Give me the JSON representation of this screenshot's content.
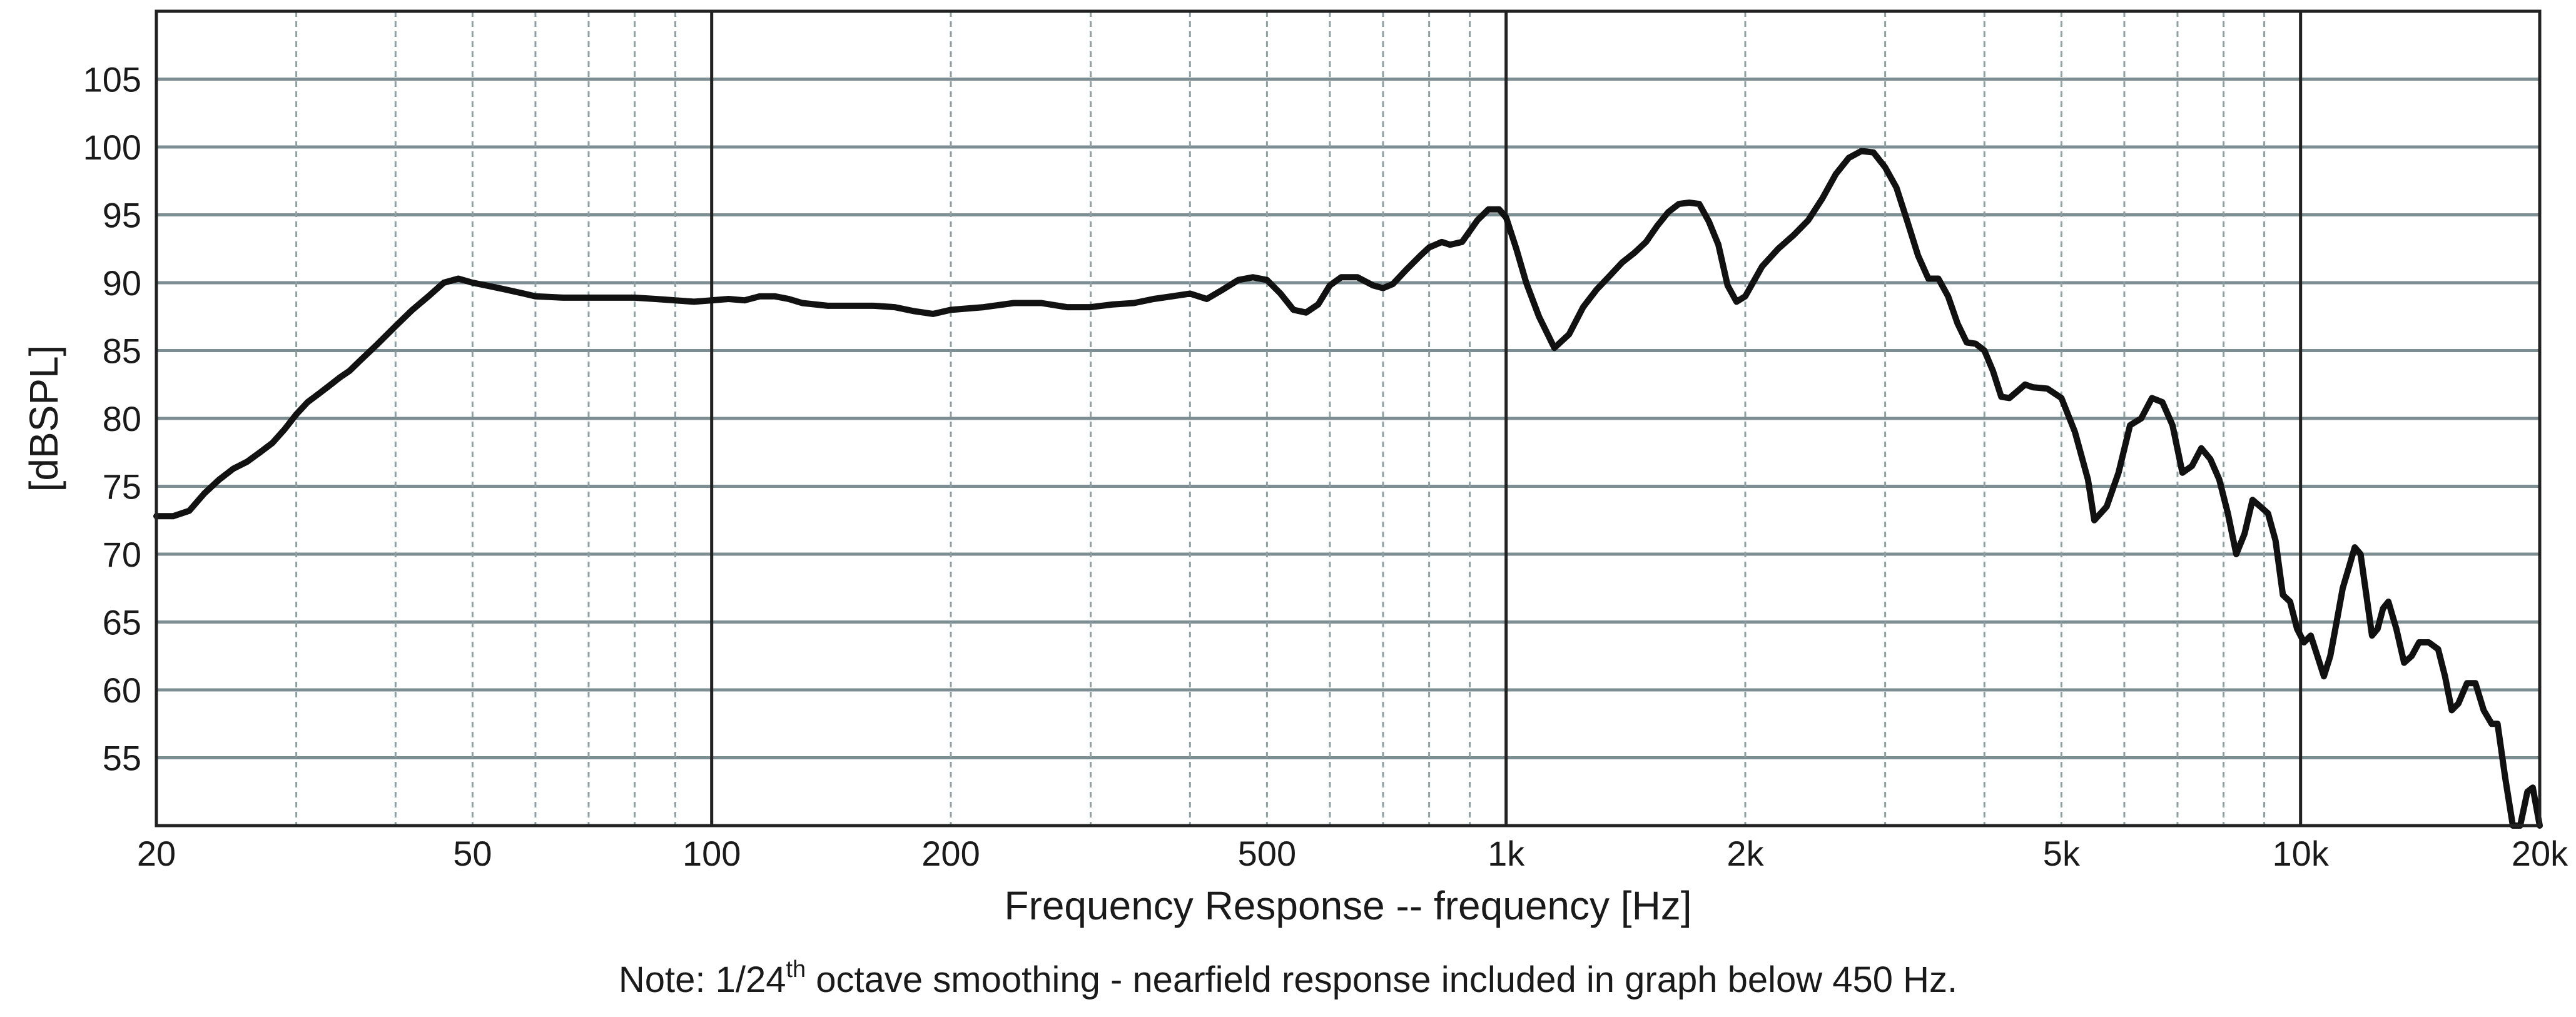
{
  "chart_data": {
    "type": "line",
    "xlabel": "Frequency Response -- frequency [Hz]",
    "ylabel": "[dBSPL]",
    "x_scale": "log",
    "xlim": [
      20,
      20000
    ],
    "ylim": [
      50,
      110
    ],
    "grid": true,
    "x_ticks": [
      {
        "value": 20,
        "label": "20"
      },
      {
        "value": 50,
        "label": "50"
      },
      {
        "value": 100,
        "label": "100"
      },
      {
        "value": 200,
        "label": "200"
      },
      {
        "value": 500,
        "label": "500"
      },
      {
        "value": 1000,
        "label": "1k"
      },
      {
        "value": 2000,
        "label": "2k"
      },
      {
        "value": 5000,
        "label": "5k"
      },
      {
        "value": 10000,
        "label": "10k"
      },
      {
        "value": 20000,
        "label": "20k"
      }
    ],
    "y_ticks": [
      55,
      60,
      65,
      70,
      75,
      80,
      85,
      90,
      95,
      100,
      105
    ],
    "series": [
      {
        "color": "#111111",
        "points": [
          [
            20,
            72.8
          ],
          [
            21,
            72.8
          ],
          [
            22,
            73.2
          ],
          [
            23,
            74.5
          ],
          [
            24,
            75.5
          ],
          [
            25,
            76.3
          ],
          [
            26,
            76.8
          ],
          [
            27,
            77.5
          ],
          [
            28,
            78.2
          ],
          [
            29,
            79.2
          ],
          [
            30,
            80.3
          ],
          [
            31,
            81.2
          ],
          [
            32,
            81.8
          ],
          [
            33,
            82.4
          ],
          [
            34,
            83.0
          ],
          [
            35,
            83.5
          ],
          [
            36,
            84.2
          ],
          [
            38,
            85.5
          ],
          [
            40,
            86.8
          ],
          [
            42,
            88.0
          ],
          [
            44,
            89.0
          ],
          [
            46,
            90.0
          ],
          [
            48,
            90.3
          ],
          [
            50,
            90.0
          ],
          [
            52,
            89.8
          ],
          [
            55,
            89.5
          ],
          [
            58,
            89.2
          ],
          [
            60,
            89.0
          ],
          [
            65,
            88.9
          ],
          [
            70,
            88.9
          ],
          [
            75,
            88.9
          ],
          [
            80,
            88.9
          ],
          [
            85,
            88.8
          ],
          [
            90,
            88.7
          ],
          [
            95,
            88.6
          ],
          [
            100,
            88.7
          ],
          [
            105,
            88.8
          ],
          [
            110,
            88.7
          ],
          [
            115,
            89.0
          ],
          [
            120,
            89.0
          ],
          [
            125,
            88.8
          ],
          [
            130,
            88.5
          ],
          [
            140,
            88.3
          ],
          [
            150,
            88.3
          ],
          [
            160,
            88.3
          ],
          [
            170,
            88.2
          ],
          [
            180,
            87.9
          ],
          [
            190,
            87.7
          ],
          [
            200,
            88.0
          ],
          [
            220,
            88.2
          ],
          [
            240,
            88.5
          ],
          [
            260,
            88.5
          ],
          [
            280,
            88.2
          ],
          [
            300,
            88.2
          ],
          [
            320,
            88.4
          ],
          [
            340,
            88.5
          ],
          [
            360,
            88.8
          ],
          [
            380,
            89.0
          ],
          [
            400,
            89.2
          ],
          [
            420,
            88.8
          ],
          [
            440,
            89.5
          ],
          [
            460,
            90.2
          ],
          [
            480,
            90.4
          ],
          [
            500,
            90.2
          ],
          [
            520,
            89.2
          ],
          [
            540,
            88.0
          ],
          [
            560,
            87.8
          ],
          [
            580,
            88.4
          ],
          [
            600,
            89.8
          ],
          [
            620,
            90.4
          ],
          [
            650,
            90.4
          ],
          [
            680,
            89.8
          ],
          [
            700,
            89.6
          ],
          [
            720,
            89.9
          ],
          [
            750,
            91.0
          ],
          [
            780,
            92.0
          ],
          [
            800,
            92.6
          ],
          [
            830,
            93.0
          ],
          [
            850,
            92.8
          ],
          [
            880,
            93.0
          ],
          [
            900,
            93.8
          ],
          [
            920,
            94.6
          ],
          [
            950,
            95.4
          ],
          [
            980,
            95.4
          ],
          [
            1000,
            94.8
          ],
          [
            1030,
            92.5
          ],
          [
            1060,
            90.0
          ],
          [
            1100,
            87.5
          ],
          [
            1150,
            85.2
          ],
          [
            1200,
            86.2
          ],
          [
            1250,
            88.2
          ],
          [
            1300,
            89.5
          ],
          [
            1350,
            90.5
          ],
          [
            1400,
            91.5
          ],
          [
            1450,
            92.2
          ],
          [
            1500,
            93.0
          ],
          [
            1550,
            94.2
          ],
          [
            1600,
            95.2
          ],
          [
            1650,
            95.8
          ],
          [
            1700,
            95.9
          ],
          [
            1750,
            95.8
          ],
          [
            1800,
            94.5
          ],
          [
            1850,
            92.8
          ],
          [
            1900,
            89.8
          ],
          [
            1950,
            88.6
          ],
          [
            2000,
            89.0
          ],
          [
            2100,
            91.2
          ],
          [
            2200,
            92.5
          ],
          [
            2300,
            93.5
          ],
          [
            2400,
            94.6
          ],
          [
            2500,
            96.2
          ],
          [
            2600,
            98.0
          ],
          [
            2700,
            99.2
          ],
          [
            2800,
            99.7
          ],
          [
            2900,
            99.6
          ],
          [
            3000,
            98.5
          ],
          [
            3100,
            97.0
          ],
          [
            3200,
            94.5
          ],
          [
            3300,
            92.0
          ],
          [
            3400,
            90.3
          ],
          [
            3500,
            90.3
          ],
          [
            3600,
            89.0
          ],
          [
            3700,
            87.0
          ],
          [
            3800,
            85.6
          ],
          [
            3900,
            85.5
          ],
          [
            4000,
            85.0
          ],
          [
            4100,
            83.5
          ],
          [
            4200,
            81.6
          ],
          [
            4300,
            81.5
          ],
          [
            4400,
            82.0
          ],
          [
            4500,
            82.5
          ],
          [
            4600,
            82.3
          ],
          [
            4800,
            82.2
          ],
          [
            5000,
            81.5
          ],
          [
            5200,
            79.0
          ],
          [
            5400,
            75.5
          ],
          [
            5500,
            72.5
          ],
          [
            5700,
            73.5
          ],
          [
            5900,
            76.0
          ],
          [
            6100,
            79.5
          ],
          [
            6300,
            80.0
          ],
          [
            6500,
            81.5
          ],
          [
            6700,
            81.2
          ],
          [
            6900,
            79.5
          ],
          [
            7100,
            76.0
          ],
          [
            7300,
            76.5
          ],
          [
            7500,
            77.8
          ],
          [
            7700,
            77.0
          ],
          [
            7900,
            75.5
          ],
          [
            8100,
            73.0
          ],
          [
            8300,
            70.0
          ],
          [
            8500,
            71.5
          ],
          [
            8700,
            74.0
          ],
          [
            8900,
            73.5
          ],
          [
            9100,
            73.0
          ],
          [
            9300,
            71.0
          ],
          [
            9500,
            67.0
          ],
          [
            9700,
            66.5
          ],
          [
            9900,
            64.5
          ],
          [
            10100,
            63.5
          ],
          [
            10300,
            64.0
          ],
          [
            10500,
            62.5
          ],
          [
            10700,
            61.0
          ],
          [
            10900,
            62.5
          ],
          [
            11100,
            65.0
          ],
          [
            11300,
            67.5
          ],
          [
            11500,
            69.0
          ],
          [
            11700,
            70.5
          ],
          [
            11900,
            70.0
          ],
          [
            12100,
            67.0
          ],
          [
            12300,
            64.0
          ],
          [
            12500,
            64.5
          ],
          [
            12700,
            66.0
          ],
          [
            12900,
            66.5
          ],
          [
            13200,
            64.5
          ],
          [
            13500,
            62.0
          ],
          [
            13800,
            62.5
          ],
          [
            14100,
            63.5
          ],
          [
            14500,
            63.5
          ],
          [
            14900,
            63.0
          ],
          [
            15200,
            61.0
          ],
          [
            15500,
            58.5
          ],
          [
            15800,
            59.0
          ],
          [
            16200,
            60.5
          ],
          [
            16600,
            60.5
          ],
          [
            17000,
            58.5
          ],
          [
            17400,
            57.5
          ],
          [
            17700,
            57.5
          ],
          [
            18100,
            53.5
          ],
          [
            18500,
            50.0
          ],
          [
            18900,
            50.0
          ],
          [
            19300,
            52.5
          ],
          [
            19600,
            52.8
          ],
          [
            20000,
            50.0
          ]
        ]
      }
    ]
  },
  "note": {
    "prefix": "Note: 1/24",
    "superscript": "th",
    "suffix": " octave smoothing - nearfield response included in graph below 450 Hz."
  }
}
